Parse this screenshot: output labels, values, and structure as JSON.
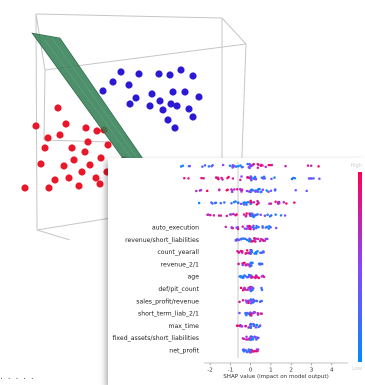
{
  "chart_data": [
    {
      "type": "scatter",
      "title": "",
      "three_d": true,
      "separating_plane": true,
      "grid": false,
      "series": [
        {
          "color": "#e8182a",
          "points": [
            [
              36,
              126
            ],
            [
              58,
              108
            ],
            [
              66,
              124
            ],
            [
              48,
              138
            ],
            [
              60,
              135
            ],
            [
              45,
              148
            ],
            [
              86,
              128
            ],
            [
              97,
              131
            ],
            [
              104,
              130
            ],
            [
              72,
              148
            ],
            [
              88,
              142
            ],
            [
              108,
              145
            ],
            [
              85,
              152
            ],
            [
              74,
              160
            ],
            [
              101,
              158
            ],
            [
              90,
              165
            ],
            [
              64,
              166
            ],
            [
              82,
              172
            ],
            [
              113,
              165
            ],
            [
              55,
              180
            ],
            [
              69,
              178
            ],
            [
              96,
              178
            ],
            [
              100,
              184
            ],
            [
              79,
              186
            ],
            [
              107,
              172
            ],
            [
              124,
              160
            ],
            [
              41,
              164
            ],
            [
              25,
              188
            ],
            [
              49,
              188
            ]
          ]
        },
        {
          "color": "#2b19d4",
          "points": [
            [
              121,
              72
            ],
            [
              139,
              74
            ],
            [
              103,
              91
            ],
            [
              113,
              82
            ],
            [
              129,
              85
            ],
            [
              159,
              74
            ],
            [
              170,
              75
            ],
            [
              181,
              70
            ],
            [
              193,
              76
            ],
            [
              173,
              92
            ],
            [
              185,
              92
            ],
            [
              199,
              97
            ],
            [
              136,
              98
            ],
            [
              152,
              94
            ],
            [
              160,
              101
            ],
            [
              150,
              106
            ],
            [
              163,
              110
            ],
            [
              177,
              106
            ],
            [
              189,
              109
            ],
            [
              130,
              104
            ],
            [
              168,
              120
            ],
            [
              175,
              128
            ],
            [
              193,
              117
            ],
            [
              171,
              104
            ]
          ]
        }
      ]
    },
    {
      "type": "scatter",
      "title": "",
      "xlabel": "SHAP value (impact on model output)",
      "ylabel": "",
      "xlim": [
        -2.3,
        4.8
      ],
      "xticks": [
        -2,
        -1,
        0,
        1,
        2,
        3,
        4
      ],
      "features": [
        "",
        "",
        "",
        "",
        "",
        "auto_execution",
        "revenue/short_liabilities",
        "count_yearall",
        "revenue_2/1",
        "age",
        "def/pit_count",
        "sales_profit/revenue",
        "short_term_liab_2/1",
        "max_time",
        "fixed_assets/short_liabilities",
        "net_profit"
      ],
      "colorbar": {
        "top_label": "High",
        "bottom_label": "Low",
        "colors": [
          "#ff0052",
          "#8a45ff",
          "#008bfb"
        ]
      }
    }
  ]
}
